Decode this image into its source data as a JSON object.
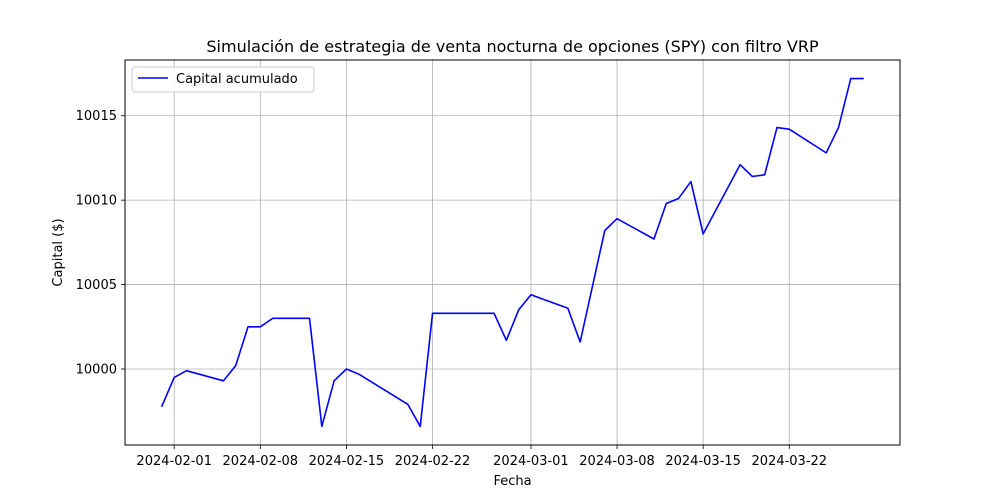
{
  "chart_data": {
    "type": "line",
    "title": "Simulación de estrategia de venta nocturna de opciones (SPY) con filtro VRP",
    "xlabel": "Fecha",
    "ylabel": "Capital ($)",
    "x_ticks": [
      "2024-02-01",
      "2024-02-08",
      "2024-02-15",
      "2024-02-22",
      "2024-03-01",
      "2024-03-08",
      "2024-03-15",
      "2024-03-22"
    ],
    "y_ticks": [
      "10000",
      "10005",
      "10010",
      "10015"
    ],
    "xlim": [
      "2024-01-28",
      "2024-03-31"
    ],
    "ylim": [
      9995.5,
      10018.3
    ],
    "grid": true,
    "legend_position": "top-left",
    "series": [
      {
        "name": "Capital acumulado",
        "color": "#0000ff",
        "points": [
          {
            "x": "2024-01-31",
            "y": 9997.8
          },
          {
            "x": "2024-02-01",
            "y": 9999.5
          },
          {
            "x": "2024-02-02",
            "y": 9999.9
          },
          {
            "x": "2024-02-05",
            "y": 9999.3
          },
          {
            "x": "2024-02-06",
            "y": 10000.2
          },
          {
            "x": "2024-02-07",
            "y": 10002.5
          },
          {
            "x": "2024-02-08",
            "y": 10002.5
          },
          {
            "x": "2024-02-09",
            "y": 10003.0
          },
          {
            "x": "2024-02-12",
            "y": 10003.0
          },
          {
            "x": "2024-02-13",
            "y": 9996.6
          },
          {
            "x": "2024-02-14",
            "y": 9999.3
          },
          {
            "x": "2024-02-15",
            "y": 10000.0
          },
          {
            "x": "2024-02-16",
            "y": 9999.7
          },
          {
            "x": "2024-02-20",
            "y": 9997.9
          },
          {
            "x": "2024-02-21",
            "y": 9996.6
          },
          {
            "x": "2024-02-22",
            "y": 10003.3
          },
          {
            "x": "2024-02-27",
            "y": 10003.3
          },
          {
            "x": "2024-02-28",
            "y": 10001.7
          },
          {
            "x": "2024-02-29",
            "y": 10003.5
          },
          {
            "x": "2024-03-01",
            "y": 10004.4
          },
          {
            "x": "2024-03-04",
            "y": 10003.6
          },
          {
            "x": "2024-03-05",
            "y": 10001.6
          },
          {
            "x": "2024-03-07",
            "y": 10008.2
          },
          {
            "x": "2024-03-08",
            "y": 10008.9
          },
          {
            "x": "2024-03-11",
            "y": 10007.7
          },
          {
            "x": "2024-03-12",
            "y": 10009.8
          },
          {
            "x": "2024-03-13",
            "y": 10010.1
          },
          {
            "x": "2024-03-14",
            "y": 10011.1
          },
          {
            "x": "2024-03-15",
            "y": 10008.0
          },
          {
            "x": "2024-03-18",
            "y": 10012.1
          },
          {
            "x": "2024-03-19",
            "y": 10011.4
          },
          {
            "x": "2024-03-20",
            "y": 10011.5
          },
          {
            "x": "2024-03-21",
            "y": 10014.3
          },
          {
            "x": "2024-03-22",
            "y": 10014.2
          },
          {
            "x": "2024-03-25",
            "y": 10012.8
          },
          {
            "x": "2024-03-26",
            "y": 10014.3
          },
          {
            "x": "2024-03-27",
            "y": 10017.2
          },
          {
            "x": "2024-03-28",
            "y": 10017.2
          }
        ]
      }
    ]
  }
}
